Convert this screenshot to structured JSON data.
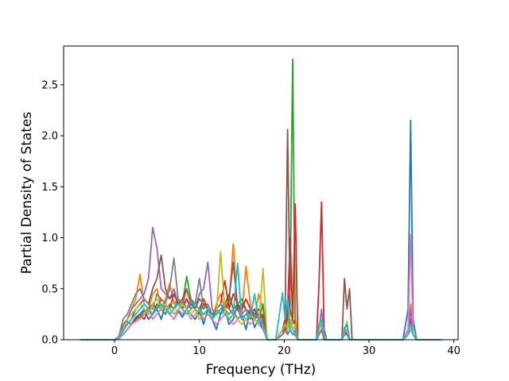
{
  "chart_data": {
    "type": "line",
    "xlabel": "Frequency (THz)",
    "ylabel": "Partial Density of States",
    "xlim": [
      -6,
      40.5
    ],
    "ylim": [
      0,
      2.88
    ],
    "xticks": [
      0,
      10,
      20,
      30,
      40
    ],
    "xtick_labels": [
      "0",
      "10",
      "20",
      "30",
      "40"
    ],
    "yticks": [
      0.0,
      0.5,
      1.0,
      1.5,
      2.0,
      2.5
    ],
    "ytick_labels": [
      "0.0",
      "0.5",
      "1.0",
      "1.5",
      "2.0",
      "2.5"
    ],
    "grid": false,
    "x": [
      -4.0,
      -2.0,
      0.0,
      0.5,
      1.0,
      1.5,
      2.0,
      2.5,
      3.0,
      3.5,
      4.0,
      4.5,
      5.0,
      5.5,
      6.0,
      6.5,
      7.0,
      7.5,
      8.0,
      8.5,
      9.0,
      9.5,
      10.0,
      10.5,
      11.0,
      11.5,
      12.0,
      12.5,
      13.0,
      13.5,
      14.0,
      14.5,
      15.0,
      15.5,
      16.0,
      16.5,
      17.0,
      17.5,
      18.0,
      19.0,
      19.8,
      20.1,
      20.4,
      20.7,
      21.0,
      21.3,
      21.6,
      22.0,
      23.0,
      23.8,
      24.1,
      24.4,
      24.7,
      25.0,
      26.0,
      26.8,
      27.1,
      27.4,
      27.7,
      28.0,
      30.0,
      34.0,
      34.6,
      34.9,
      35.2,
      35.6,
      37.0,
      38.5
    ],
    "series": [
      {
        "color": "#1f77b4",
        "values": [
          0,
          0,
          0,
          0.03,
          0.12,
          0.18,
          0.15,
          0.22,
          0.25,
          0.3,
          0.2,
          0.25,
          0.3,
          0.2,
          0.35,
          0.25,
          0.2,
          0.28,
          0.22,
          0.3,
          0.25,
          0.2,
          0.28,
          0.15,
          0.3,
          0.2,
          0.1,
          0.25,
          0.3,
          0.15,
          0.2,
          0.35,
          0.25,
          0.1,
          0.3,
          0.12,
          0.2,
          0.1,
          0,
          0,
          0.05,
          0.15,
          0.05,
          0.1,
          0.05,
          0.08,
          0,
          0,
          0,
          0,
          0.05,
          0.1,
          0,
          0,
          0,
          0,
          0.08,
          0.05,
          0,
          0,
          0,
          0,
          0.3,
          2.15,
          0.2,
          0,
          0,
          0
        ]
      },
      {
        "color": "#ff7f0e",
        "values": [
          0,
          0,
          0,
          0.02,
          0.08,
          0.2,
          0.3,
          0.4,
          0.64,
          0.35,
          0.3,
          0.45,
          0.5,
          0.3,
          0.4,
          0.55,
          0.35,
          0.4,
          0.3,
          0.5,
          0.35,
          0.3,
          0.25,
          0.4,
          0.3,
          0.2,
          0.35,
          0.45,
          0.3,
          0.35,
          0.94,
          0.3,
          0.25,
          0.72,
          0.35,
          0.2,
          0.45,
          0.3,
          0,
          0,
          0.1,
          0.2,
          0.1,
          0.3,
          0.15,
          0.2,
          0,
          0,
          0,
          0,
          0.1,
          0.15,
          0,
          0,
          0,
          0,
          0.1,
          0.08,
          0,
          0,
          0,
          0,
          0.1,
          0.35,
          0.05,
          0,
          0,
          0
        ]
      },
      {
        "color": "#2ca02c",
        "values": [
          0,
          0,
          0,
          0.02,
          0.05,
          0.1,
          0.15,
          0.2,
          0.22,
          0.28,
          0.3,
          0.25,
          0.35,
          0.3,
          0.25,
          0.35,
          0.3,
          0.4,
          0.35,
          0.62,
          0.4,
          0.3,
          0.25,
          0.35,
          0.3,
          0.2,
          0.3,
          0.25,
          0.35,
          0.45,
          0.3,
          0.35,
          0.4,
          0.3,
          0.25,
          0.3,
          0.2,
          0.35,
          0,
          0,
          0.05,
          0.1,
          0.2,
          0.5,
          2.75,
          0.1,
          0,
          0,
          0,
          0,
          0.05,
          0.1,
          0,
          0,
          0,
          0,
          0.05,
          0.05,
          0,
          0,
          0,
          0,
          0.05,
          0.2,
          0.05,
          0,
          0,
          0
        ]
      },
      {
        "color": "#d62728",
        "values": [
          0,
          0,
          0,
          0.01,
          0.05,
          0.1,
          0.15,
          0.2,
          0.25,
          0.2,
          0.3,
          0.35,
          0.3,
          0.4,
          0.35,
          0.3,
          0.45,
          0.35,
          0.3,
          0.4,
          0.3,
          0.35,
          0.3,
          0.4,
          0.3,
          0.25,
          0.3,
          0.35,
          0.58,
          0.3,
          0.45,
          0.35,
          0.3,
          0.4,
          0.3,
          0.25,
          0.3,
          0.2,
          0,
          0,
          0.05,
          0.1,
          0.3,
          1.0,
          0.2,
          1.33,
          0,
          0,
          0,
          0,
          0.55,
          1.35,
          0.1,
          0,
          0,
          0,
          0.1,
          0.15,
          0,
          0,
          0,
          0,
          0.1,
          0.2,
          0.05,
          0,
          0,
          0
        ]
      },
      {
        "color": "#9467bd",
        "values": [
          0,
          0,
          0,
          0.02,
          0.15,
          0.2,
          0.3,
          0.35,
          0.4,
          0.45,
          0.6,
          1.1,
          0.9,
          0.5,
          0.45,
          0.4,
          0.5,
          0.35,
          0.4,
          0.3,
          0.35,
          0.3,
          0.45,
          0.5,
          0.76,
          0.3,
          0.25,
          0.3,
          0.35,
          0.3,
          0.25,
          0.3,
          0.2,
          0.25,
          0.3,
          0.2,
          0.25,
          0.15,
          0,
          0,
          0.05,
          0.1,
          0.05,
          0.1,
          0.05,
          0.08,
          0,
          0,
          0,
          0,
          0.1,
          0.3,
          0.05,
          0,
          0,
          0,
          0.05,
          0.05,
          0,
          0,
          0,
          0,
          0.05,
          0.3,
          0.05,
          0,
          0,
          0
        ]
      },
      {
        "color": "#8c564b",
        "values": [
          0,
          0,
          0,
          0.02,
          0.1,
          0.15,
          0.2,
          0.3,
          0.35,
          0.4,
          0.35,
          0.5,
          0.6,
          0.83,
          0.5,
          0.4,
          0.45,
          0.35,
          0.4,
          0.5,
          0.35,
          0.3,
          0.4,
          0.35,
          0.3,
          0.25,
          0.3,
          0.35,
          0.3,
          0.4,
          0.76,
          0.3,
          0.35,
          0.3,
          0.25,
          0.3,
          0.2,
          0.25,
          0,
          0,
          0.1,
          0.2,
          2.06,
          0.3,
          0.2,
          0.15,
          0,
          0,
          0,
          0,
          0.1,
          0.15,
          0.05,
          0,
          0,
          0,
          0.6,
          0.3,
          0.5,
          0,
          0,
          0,
          0.05,
          0.1,
          0.05,
          0,
          0,
          0
        ]
      },
      {
        "color": "#e377c2",
        "values": [
          0,
          0,
          0,
          0.01,
          0.05,
          0.1,
          0.15,
          0.18,
          0.2,
          0.25,
          0.3,
          0.2,
          0.25,
          0.3,
          0.35,
          0.25,
          0.2,
          0.3,
          0.25,
          0.3,
          0.2,
          0.25,
          0.3,
          0.2,
          0.25,
          0.2,
          0.15,
          0.2,
          0.25,
          0.2,
          0.15,
          0.2,
          0.25,
          0.2,
          0.15,
          0.2,
          0.15,
          0.1,
          0,
          0,
          0.05,
          0.08,
          0.1,
          0.15,
          0.1,
          0.05,
          0,
          0,
          0,
          0,
          0.1,
          0.15,
          0.05,
          0,
          0,
          0,
          0.1,
          0.1,
          0,
          0,
          0,
          0,
          0.1,
          1.03,
          0.05,
          0,
          0,
          0
        ]
      },
      {
        "color": "#7f7f7f",
        "values": [
          0,
          0,
          0,
          0.03,
          0.2,
          0.25,
          0.35,
          0.45,
          0.5,
          0.4,
          0.35,
          0.3,
          0.45,
          0.4,
          0.35,
          0.5,
          0.8,
          0.4,
          0.35,
          0.3,
          0.4,
          0.35,
          0.6,
          0.3,
          0.35,
          0.25,
          0.3,
          0.35,
          0.3,
          0.25,
          0.3,
          0.2,
          0.25,
          0.3,
          0.2,
          0.25,
          0.2,
          0.15,
          0,
          0,
          0.05,
          0.1,
          0.05,
          0.1,
          0.05,
          0.05,
          0,
          0,
          0,
          0,
          0.05,
          0.1,
          0,
          0,
          0,
          0,
          0.05,
          0.05,
          0,
          0,
          0,
          0,
          0.05,
          0.1,
          0.05,
          0,
          0,
          0
        ]
      },
      {
        "color": "#bcbd22",
        "values": [
          0,
          0,
          0,
          0.02,
          0.1,
          0.2,
          0.25,
          0.3,
          0.35,
          0.3,
          0.25,
          0.35,
          0.4,
          0.3,
          0.35,
          0.3,
          0.25,
          0.3,
          0.35,
          0.3,
          0.25,
          0.3,
          0.2,
          0.25,
          0.3,
          0.2,
          0.25,
          0.86,
          0.3,
          0.2,
          0.25,
          0.2,
          0.15,
          0.2,
          0.25,
          0.2,
          0.15,
          0.7,
          0,
          0,
          0.1,
          0.15,
          0.1,
          0.2,
          0.1,
          0.15,
          0,
          0,
          0,
          0,
          0.1,
          0.2,
          0.05,
          0,
          0,
          0,
          0.1,
          0.18,
          0,
          0,
          0,
          0,
          0.05,
          0.1,
          0.05,
          0,
          0,
          0
        ]
      },
      {
        "color": "#17becf",
        "values": [
          0,
          0,
          0,
          0.02,
          0.08,
          0.15,
          0.2,
          0.25,
          0.3,
          0.35,
          0.3,
          0.25,
          0.3,
          0.35,
          0.3,
          0.25,
          0.3,
          0.35,
          0.3,
          0.25,
          0.3,
          0.35,
          0.3,
          0.25,
          0.3,
          0.2,
          0.25,
          0.3,
          0.25,
          0.2,
          0.25,
          0.75,
          0.2,
          0.25,
          0.2,
          0.45,
          0.2,
          0.15,
          0,
          0,
          0.46,
          0.2,
          0.4,
          0.1,
          0.05,
          0.1,
          0,
          0,
          0,
          0,
          0.15,
          0.2,
          0.05,
          0,
          0,
          0,
          0.12,
          0.15,
          0,
          0,
          0,
          0,
          0.05,
          0.15,
          0.05,
          0,
          0,
          0
        ]
      }
    ]
  }
}
